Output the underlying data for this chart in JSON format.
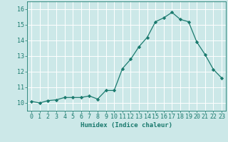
{
  "x": [
    0,
    1,
    2,
    3,
    4,
    5,
    6,
    7,
    8,
    9,
    10,
    11,
    12,
    13,
    14,
    15,
    16,
    17,
    18,
    19,
    20,
    21,
    22,
    23
  ],
  "y": [
    10.1,
    10.0,
    10.15,
    10.2,
    10.35,
    10.35,
    10.35,
    10.45,
    10.25,
    10.8,
    10.8,
    12.2,
    12.8,
    13.6,
    14.2,
    15.2,
    15.45,
    15.8,
    15.35,
    15.2,
    13.9,
    13.1,
    12.15,
    11.6
  ],
  "xlabel": "Humidex (Indice chaleur)",
  "xlim": [
    -0.5,
    23.5
  ],
  "ylim": [
    9.5,
    16.5
  ],
  "yticks": [
    10,
    11,
    12,
    13,
    14,
    15,
    16
  ],
  "xticks": [
    0,
    1,
    2,
    3,
    4,
    5,
    6,
    7,
    8,
    9,
    10,
    11,
    12,
    13,
    14,
    15,
    16,
    17,
    18,
    19,
    20,
    21,
    22,
    23
  ],
  "line_color": "#1a7a6e",
  "marker": "D",
  "marker_size": 2.2,
  "bg_color": "#cce8e8",
  "grid_color": "#ffffff",
  "axes_color": "#1a7a6e",
  "tick_color": "#1a7a6e",
  "label_color": "#1a7a6e",
  "xlabel_fontsize": 6.5,
  "tick_fontsize": 6.0
}
